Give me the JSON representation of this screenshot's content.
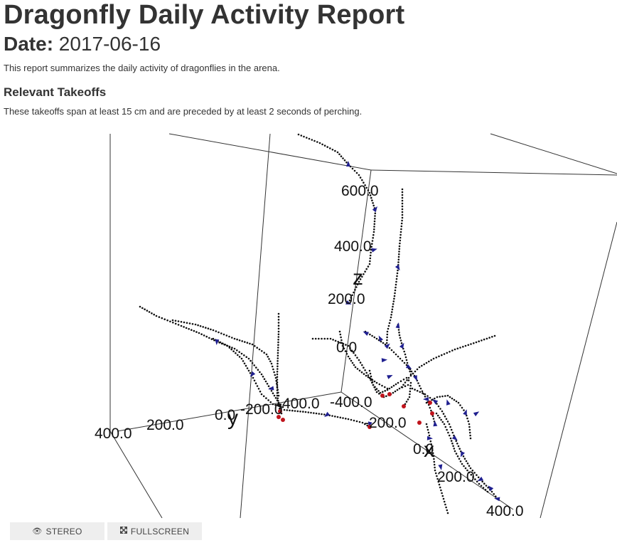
{
  "report": {
    "title": "Dragonfly Daily Activity Report",
    "date_label": "Date:",
    "date_value": "2017-06-16",
    "intro": "This report summarizes the daily activity of dragonflies in the arena."
  },
  "section": {
    "heading": "Relevant Takeoffs",
    "description": "These takeoffs span at least 15 cm and are preceded by at least 2 seconds of perching."
  },
  "toolbar": {
    "stereo_label": "STEREO",
    "stereo_icon": "eye-icon",
    "fullscreen_label": "FULLSCREEN",
    "fullscreen_icon": "expand-icon"
  },
  "colors": {
    "trajectory": "#111111",
    "takeoff_marker": "#1f1f8f",
    "perch_marker": "#c0141c",
    "axis_line": "#333333"
  },
  "chart_data": {
    "type": "scatter3d",
    "axes": {
      "x": {
        "label": "x",
        "ticks": [
          "-400.0",
          "-200.0",
          "0.0",
          "200.0",
          "400.0"
        ]
      },
      "y": {
        "label": "y",
        "ticks": [
          "400.0",
          "200.0",
          "0.0",
          "-200.0",
          "-400.0"
        ]
      },
      "z": {
        "label": "z",
        "ticks": [
          "0.0",
          "200.0",
          "400.0",
          "600.0"
        ]
      }
    },
    "legend": "none",
    "marker_types": [
      "trajectory-point",
      "takeoff-cone",
      "perch-point"
    ],
    "trajectory_count": 14
  }
}
